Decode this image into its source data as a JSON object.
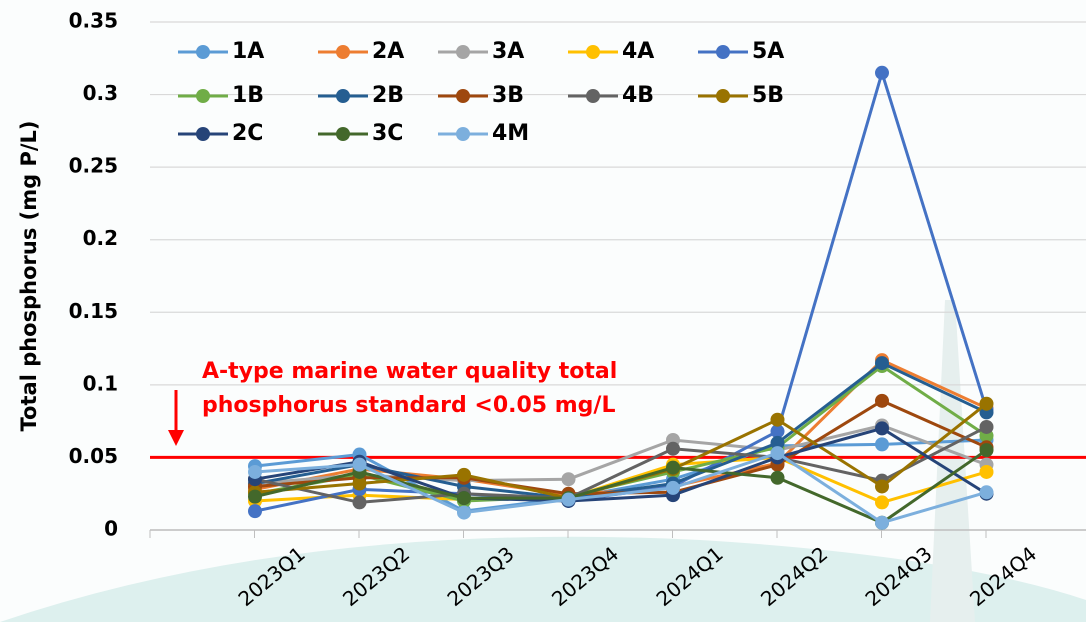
{
  "chart_data": {
    "type": "line",
    "y_label": "Total  phosphorus (mg P/L)",
    "categories": [
      "2023Q1",
      "2023Q2",
      "2023Q3",
      "2023Q4",
      "2024Q1",
      "2024Q2",
      "2024Q3",
      "2024Q4"
    ],
    "ylim": [
      0,
      0.35
    ],
    "yticks": [
      0,
      0.05,
      0.1,
      0.15,
      0.2,
      0.25,
      0.3,
      0.35
    ],
    "grid": true,
    "reference_line": {
      "value": 0.05,
      "color": "#ff0000"
    },
    "annotation": [
      "A-type marine water quality total",
      "phosphorus standard <0.05 mg/L"
    ],
    "legend": "top-left",
    "series": [
      {
        "name": "1A",
        "color": "#5b9bd5",
        "values": [
          0.044,
          0.052,
          0.013,
          0.022,
          0.035,
          0.058,
          0.059,
          0.062
        ]
      },
      {
        "name": "2A",
        "color": "#ed7d31",
        "values": [
          0.028,
          0.042,
          0.035,
          0.024,
          0.03,
          0.046,
          0.117,
          0.084
        ]
      },
      {
        "name": "3A",
        "color": "#a5a5a5",
        "values": [
          0.032,
          0.038,
          0.034,
          0.035,
          0.062,
          0.055,
          0.072,
          0.045
        ]
      },
      {
        "name": "4A",
        "color": "#ffc000",
        "values": [
          0.02,
          0.024,
          0.021,
          0.022,
          0.045,
          0.05,
          0.019,
          0.04
        ]
      },
      {
        "name": "5A",
        "color": "#4472c4",
        "values": [
          0.013,
          0.028,
          0.025,
          0.02,
          0.03,
          0.068,
          0.315,
          0.083
        ]
      },
      {
        "name": "1B",
        "color": "#70ad47",
        "values": [
          0.025,
          0.038,
          0.02,
          0.023,
          0.04,
          0.057,
          0.113,
          0.065
        ]
      },
      {
        "name": "2B",
        "color": "#255e91",
        "values": [
          0.032,
          0.045,
          0.03,
          0.022,
          0.032,
          0.06,
          0.115,
          0.081
        ]
      },
      {
        "name": "3B",
        "color": "#9e480e",
        "values": [
          0.03,
          0.036,
          0.036,
          0.025,
          0.026,
          0.045,
          0.089,
          0.057
        ]
      },
      {
        "name": "4B",
        "color": "#636363",
        "values": [
          0.035,
          0.019,
          0.025,
          0.022,
          0.056,
          0.05,
          0.034,
          0.071
        ]
      },
      {
        "name": "5B",
        "color": "#997300",
        "values": [
          0.026,
          0.032,
          0.038,
          0.022,
          0.042,
          0.076,
          0.03,
          0.087
        ]
      },
      {
        "name": "2C",
        "color": "#264478",
        "values": [
          0.035,
          0.047,
          0.022,
          0.02,
          0.024,
          0.05,
          0.07,
          0.025
        ]
      },
      {
        "name": "3C",
        "color": "#43682b",
        "values": [
          0.023,
          0.04,
          0.022,
          0.022,
          0.043,
          0.036,
          0.005,
          0.055
        ]
      },
      {
        "name": "4M",
        "color": "#7cafdd",
        "values": [
          0.04,
          0.045,
          0.012,
          0.021,
          0.029,
          0.053,
          0.005,
          0.026
        ]
      }
    ]
  }
}
